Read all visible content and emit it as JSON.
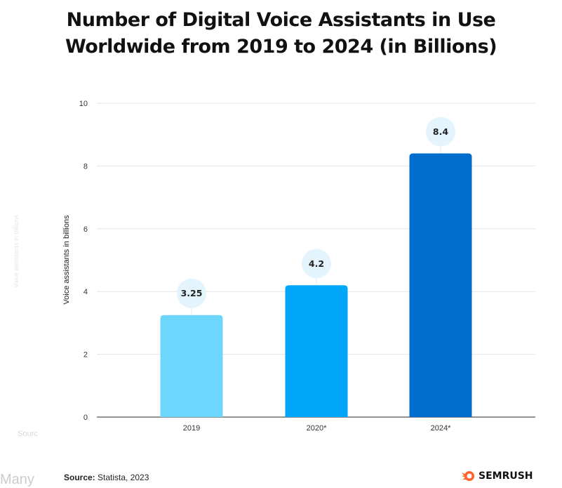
{
  "title_line1": "Number of Digital Voice Assistants in Use",
  "title_line2": "Worldwide from 2019 to 2024 (in Billions)",
  "chart_data": {
    "type": "bar",
    "title": "Number of Digital Voice Assistants in Use Worldwide from 2019 to 2024 (in Billions)",
    "categories": [
      "2019",
      "2020*",
      "2024*"
    ],
    "values": [
      3.25,
      4.2,
      8.4
    ],
    "data_labels": [
      "3.25",
      "4.2",
      "8.4"
    ],
    "ylabel": "Voice assistants in billions",
    "xlabel": "",
    "ylim": [
      0,
      10
    ],
    "yticks": [
      "0",
      "2",
      "4",
      "6",
      "8",
      "10"
    ],
    "grid": true,
    "colors": [
      "#6dd6fd",
      "#00a6f8",
      "#006dcc"
    ],
    "label_bubble_color": "#e3f4fd"
  },
  "footer": {
    "source_label": "Source:",
    "source_text": " Statista, 2023",
    "brand": "SEMRUSH",
    "brand_color": "#ff642d"
  },
  "background_fragments": {
    "source_fragment": "Sourc",
    "text_fragment": "Many ",
    "axis_fragment": "Voice assistants in billions"
  }
}
